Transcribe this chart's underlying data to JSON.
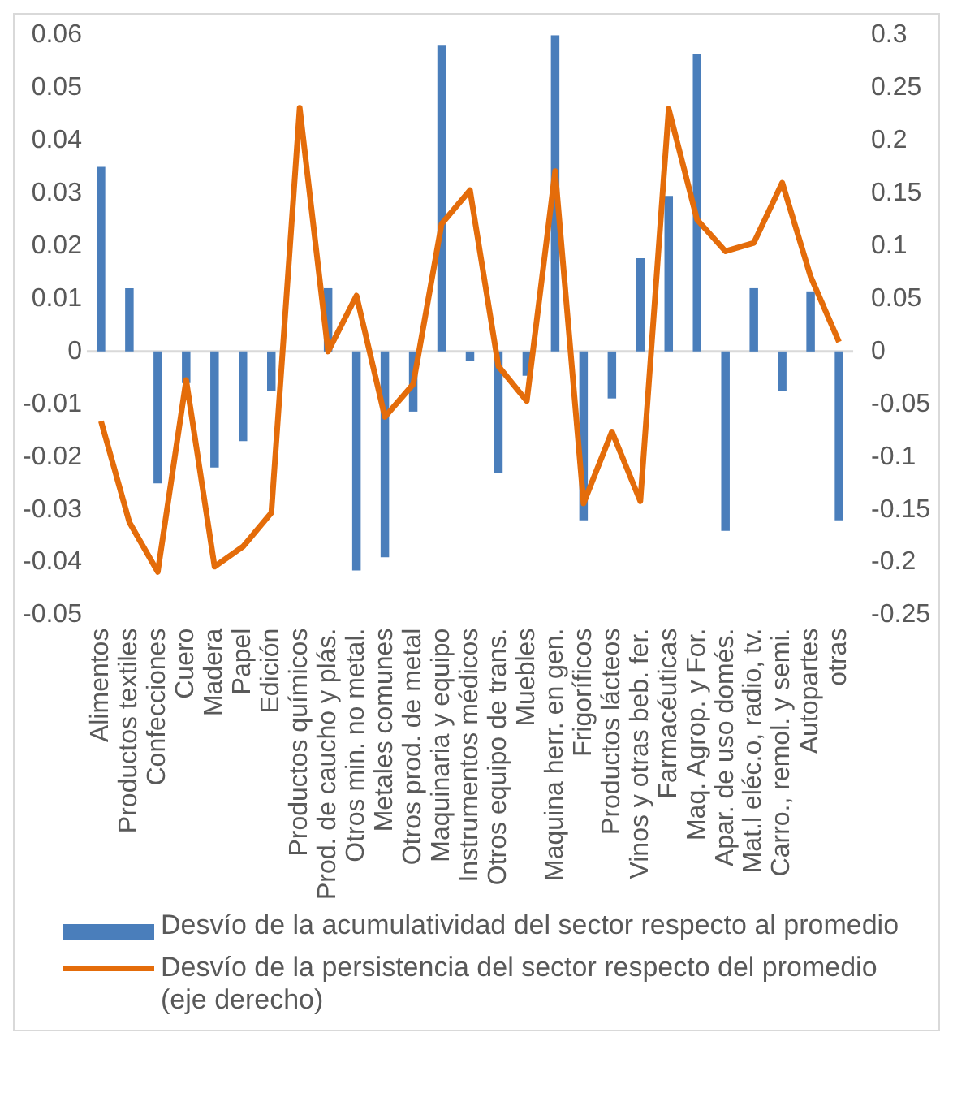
{
  "chart_data": {
    "type": "bar",
    "categories": [
      "Alimentos",
      "Productos textiles",
      "Confecciones",
      "Cuero",
      "Madera",
      "Papel",
      "Edición",
      "Productos químicos",
      "Prod. de caucho y plás.",
      "Otros min. no metal.",
      "Metales comunes",
      "Otros prod. de metal",
      "Maquinaria y equipo",
      "Instrumentos médicos",
      "Otros equipo de trans.",
      "Muebles",
      "Maquina herr. en gen.",
      "Frigoríficos",
      "Productos lácteos",
      "Vinos y otras beb. fer.",
      "Farmacéuticas",
      "Maq. Agrop. y For.",
      "Apar. de uso domés.",
      "Mat.l eléc.o, radio, tv.",
      "Carro., remol. y semi.",
      "Autopartes",
      "otras"
    ],
    "series": [
      {
        "name": "Desvío de la acumulatividad del sector respecto al promedio",
        "color": "#4a7ebb",
        "values": [
          0.035,
          0.012,
          -0.025,
          -0.006,
          -0.022,
          -0.017,
          -0.0075,
          0,
          0.012,
          -0.0415,
          -0.039,
          -0.0114,
          0.058,
          -0.0018,
          -0.023,
          -0.0046,
          0.06,
          -0.032,
          -0.0089,
          0.0177,
          0.0295,
          0.0564,
          -0.034,
          0.012,
          -0.0075,
          0.0114,
          -0.032
        ]
      },
      {
        "name": "Desvío de la persistencia del sector respecto del promedio (eje derecho)",
        "type": "line",
        "axis": "y2",
        "color": "#e46c0a",
        "values": [
          -0.066,
          -0.162,
          -0.209,
          -0.027,
          -0.204,
          -0.185,
          -0.153,
          0.231,
          0,
          0.053,
          -0.062,
          -0.031,
          0.121,
          0.153,
          -0.014,
          -0.047,
          0.171,
          -0.144,
          -0.076,
          -0.142,
          0.23,
          0.125,
          0.095,
          0.103,
          0.16,
          0.071,
          0.009
        ]
      }
    ],
    "ylim": [
      -0.05,
      0.06
    ],
    "yticks": [
      -0.05,
      -0.04,
      -0.03,
      -0.02,
      -0.01,
      0,
      0.01,
      0.02,
      0.03,
      0.04,
      0.05,
      0.06
    ],
    "y2lim": [
      -0.25,
      0.3
    ],
    "y2ticks": [
      -0.25,
      -0.2,
      -0.15,
      -0.1,
      -0.05,
      0,
      0.05,
      0.1,
      0.15,
      0.2,
      0.25,
      0.3
    ],
    "legend": "bottom",
    "marker": "none",
    "line_style": "solid"
  }
}
